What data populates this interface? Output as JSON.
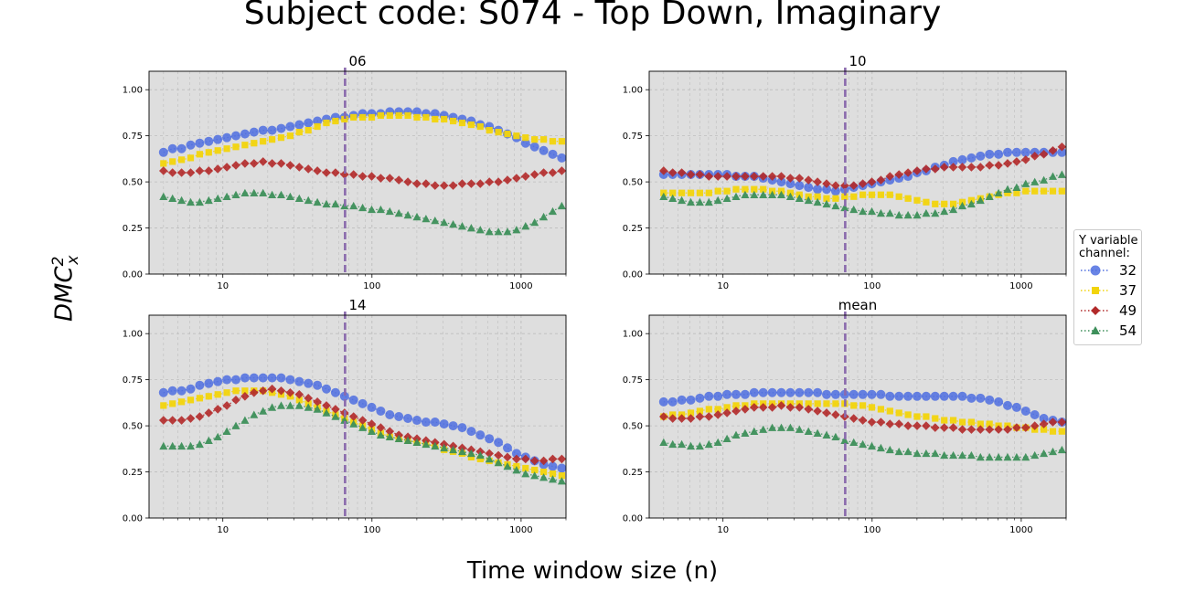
{
  "page": {
    "title": "Subject code: S074 - Top Down, Imaginary",
    "xlabel": "Time window size (n)",
    "ylabel_base": "DMC",
    "ylabel_sup": "2",
    "ylabel_sub": "x"
  },
  "legend": {
    "title_line1": "Y variable",
    "title_line2": "channel:",
    "placement": "right-center outside"
  },
  "colors": {
    "32": "#4f6fe0",
    "37": "#f2d40c",
    "49": "#b22a2a",
    "54": "#3d8f5a",
    "vline": "#8a6aac",
    "panel_bg": "#dedede"
  },
  "chart_data": [
    {
      "type": "scatter",
      "title": "06",
      "xscale": "log",
      "xlim": [
        3.2,
        2000
      ],
      "ylim": [
        0,
        1.1
      ],
      "xticks": [
        "10",
        "100",
        "1000"
      ],
      "yticks": [
        "0.00",
        "0.25",
        "0.50",
        "0.75",
        "1.00"
      ],
      "vline_x": 66,
      "grid": true,
      "x_start": 4,
      "x_ratio": 1.15,
      "series": [
        {
          "name": "32",
          "marker": "circle",
          "values": [
            0.66,
            0.68,
            0.68,
            0.7,
            0.71,
            0.72,
            0.73,
            0.74,
            0.75,
            0.76,
            0.77,
            0.78,
            0.78,
            0.79,
            0.8,
            0.81,
            0.82,
            0.83,
            0.84,
            0.85,
            0.85,
            0.86,
            0.87,
            0.87,
            0.87,
            0.88,
            0.88,
            0.88,
            0.88,
            0.87,
            0.87,
            0.86,
            0.85,
            0.84,
            0.83,
            0.81,
            0.8,
            0.78,
            0.76,
            0.74,
            0.71,
            0.69,
            0.67,
            0.65,
            0.63
          ]
        },
        {
          "name": "37",
          "marker": "square",
          "values": [
            0.6,
            0.61,
            0.62,
            0.63,
            0.65,
            0.66,
            0.67,
            0.68,
            0.69,
            0.7,
            0.71,
            0.72,
            0.73,
            0.74,
            0.75,
            0.77,
            0.78,
            0.8,
            0.82,
            0.83,
            0.84,
            0.85,
            0.85,
            0.85,
            0.86,
            0.86,
            0.86,
            0.86,
            0.85,
            0.85,
            0.84,
            0.84,
            0.83,
            0.82,
            0.81,
            0.8,
            0.78,
            0.77,
            0.76,
            0.75,
            0.74,
            0.73,
            0.73,
            0.72,
            0.72
          ]
        },
        {
          "name": "49",
          "marker": "diamond",
          "values": [
            0.56,
            0.55,
            0.55,
            0.55,
            0.56,
            0.56,
            0.57,
            0.58,
            0.59,
            0.6,
            0.6,
            0.61,
            0.6,
            0.6,
            0.59,
            0.58,
            0.57,
            0.56,
            0.55,
            0.55,
            0.54,
            0.54,
            0.53,
            0.53,
            0.52,
            0.52,
            0.51,
            0.5,
            0.49,
            0.49,
            0.48,
            0.48,
            0.48,
            0.49,
            0.49,
            0.49,
            0.5,
            0.5,
            0.51,
            0.52,
            0.53,
            0.54,
            0.55,
            0.55,
            0.56
          ]
        },
        {
          "name": "54",
          "marker": "triangle",
          "values": [
            0.42,
            0.41,
            0.4,
            0.39,
            0.39,
            0.4,
            0.41,
            0.42,
            0.43,
            0.44,
            0.44,
            0.44,
            0.43,
            0.43,
            0.42,
            0.41,
            0.4,
            0.39,
            0.38,
            0.38,
            0.37,
            0.37,
            0.36,
            0.35,
            0.35,
            0.34,
            0.33,
            0.32,
            0.31,
            0.3,
            0.29,
            0.28,
            0.27,
            0.26,
            0.25,
            0.24,
            0.23,
            0.23,
            0.23,
            0.24,
            0.26,
            0.28,
            0.31,
            0.34,
            0.37
          ]
        }
      ]
    },
    {
      "type": "scatter",
      "title": "10",
      "xscale": "log",
      "xlim": [
        3.2,
        2000
      ],
      "ylim": [
        0,
        1.1
      ],
      "xticks": [
        "10",
        "100",
        "1000"
      ],
      "yticks": [
        "0.00",
        "0.25",
        "0.50",
        "0.75",
        "1.00"
      ],
      "vline_x": 66,
      "grid": true,
      "x_start": 4,
      "x_ratio": 1.15,
      "series": [
        {
          "name": "32",
          "marker": "circle",
          "values": [
            0.54,
            0.54,
            0.54,
            0.54,
            0.54,
            0.54,
            0.54,
            0.54,
            0.53,
            0.53,
            0.53,
            0.52,
            0.51,
            0.5,
            0.49,
            0.48,
            0.47,
            0.46,
            0.46,
            0.45,
            0.46,
            0.47,
            0.48,
            0.49,
            0.5,
            0.51,
            0.52,
            0.53,
            0.55,
            0.56,
            0.58,
            0.59,
            0.61,
            0.62,
            0.63,
            0.64,
            0.65,
            0.65,
            0.66,
            0.66,
            0.66,
            0.66,
            0.66,
            0.66,
            0.66
          ]
        },
        {
          "name": "37",
          "marker": "square",
          "values": [
            0.44,
            0.44,
            0.44,
            0.44,
            0.44,
            0.44,
            0.45,
            0.45,
            0.46,
            0.46,
            0.46,
            0.46,
            0.45,
            0.45,
            0.44,
            0.43,
            0.42,
            0.42,
            0.41,
            0.41,
            0.42,
            0.42,
            0.43,
            0.43,
            0.43,
            0.43,
            0.42,
            0.41,
            0.4,
            0.39,
            0.38,
            0.38,
            0.38,
            0.39,
            0.4,
            0.41,
            0.42,
            0.43,
            0.44,
            0.44,
            0.45,
            0.45,
            0.45,
            0.45,
            0.45
          ]
        },
        {
          "name": "49",
          "marker": "diamond",
          "values": [
            0.56,
            0.55,
            0.55,
            0.54,
            0.54,
            0.53,
            0.53,
            0.53,
            0.53,
            0.53,
            0.53,
            0.53,
            0.53,
            0.53,
            0.52,
            0.52,
            0.51,
            0.5,
            0.49,
            0.48,
            0.48,
            0.48,
            0.49,
            0.5,
            0.51,
            0.53,
            0.54,
            0.55,
            0.56,
            0.57,
            0.57,
            0.58,
            0.58,
            0.58,
            0.58,
            0.58,
            0.59,
            0.59,
            0.6,
            0.61,
            0.62,
            0.64,
            0.65,
            0.67,
            0.69
          ]
        },
        {
          "name": "54",
          "marker": "triangle",
          "values": [
            0.42,
            0.41,
            0.4,
            0.39,
            0.39,
            0.39,
            0.4,
            0.41,
            0.42,
            0.43,
            0.43,
            0.43,
            0.43,
            0.43,
            0.42,
            0.41,
            0.4,
            0.39,
            0.38,
            0.37,
            0.36,
            0.35,
            0.34,
            0.34,
            0.33,
            0.33,
            0.32,
            0.32,
            0.32,
            0.33,
            0.33,
            0.34,
            0.35,
            0.37,
            0.38,
            0.4,
            0.42,
            0.44,
            0.46,
            0.47,
            0.49,
            0.5,
            0.51,
            0.53,
            0.54
          ]
        }
      ]
    },
    {
      "type": "scatter",
      "title": "14",
      "xscale": "log",
      "xlim": [
        3.2,
        2000
      ],
      "ylim": [
        0,
        1.1
      ],
      "xticks": [
        "10",
        "100",
        "1000"
      ],
      "yticks": [
        "0.00",
        "0.25",
        "0.50",
        "0.75",
        "1.00"
      ],
      "vline_x": 66,
      "grid": true,
      "x_start": 4,
      "x_ratio": 1.15,
      "series": [
        {
          "name": "32",
          "marker": "circle",
          "values": [
            0.68,
            0.69,
            0.69,
            0.7,
            0.72,
            0.73,
            0.74,
            0.75,
            0.75,
            0.76,
            0.76,
            0.76,
            0.76,
            0.76,
            0.75,
            0.74,
            0.73,
            0.72,
            0.7,
            0.68,
            0.66,
            0.64,
            0.62,
            0.6,
            0.58,
            0.56,
            0.55,
            0.54,
            0.53,
            0.52,
            0.52,
            0.51,
            0.5,
            0.49,
            0.47,
            0.45,
            0.43,
            0.41,
            0.38,
            0.35,
            0.33,
            0.31,
            0.29,
            0.28,
            0.27
          ]
        },
        {
          "name": "37",
          "marker": "square",
          "values": [
            0.61,
            0.62,
            0.63,
            0.64,
            0.65,
            0.66,
            0.67,
            0.68,
            0.69,
            0.69,
            0.69,
            0.69,
            0.68,
            0.67,
            0.66,
            0.64,
            0.62,
            0.6,
            0.58,
            0.56,
            0.54,
            0.52,
            0.5,
            0.48,
            0.46,
            0.44,
            0.43,
            0.42,
            0.41,
            0.4,
            0.39,
            0.37,
            0.36,
            0.35,
            0.33,
            0.32,
            0.31,
            0.3,
            0.29,
            0.28,
            0.27,
            0.26,
            0.25,
            0.24,
            0.23
          ]
        },
        {
          "name": "49",
          "marker": "diamond",
          "values": [
            0.53,
            0.53,
            0.53,
            0.54,
            0.55,
            0.57,
            0.59,
            0.61,
            0.64,
            0.66,
            0.68,
            0.69,
            0.7,
            0.69,
            0.68,
            0.67,
            0.65,
            0.63,
            0.61,
            0.59,
            0.57,
            0.55,
            0.53,
            0.51,
            0.49,
            0.47,
            0.45,
            0.44,
            0.43,
            0.42,
            0.41,
            0.4,
            0.39,
            0.38,
            0.37,
            0.36,
            0.35,
            0.34,
            0.33,
            0.32,
            0.32,
            0.31,
            0.31,
            0.32,
            0.32
          ]
        },
        {
          "name": "54",
          "marker": "triangle",
          "values": [
            0.39,
            0.39,
            0.39,
            0.39,
            0.4,
            0.42,
            0.44,
            0.47,
            0.5,
            0.53,
            0.56,
            0.58,
            0.6,
            0.61,
            0.61,
            0.61,
            0.6,
            0.59,
            0.57,
            0.55,
            0.53,
            0.51,
            0.49,
            0.47,
            0.45,
            0.44,
            0.43,
            0.42,
            0.41,
            0.4,
            0.39,
            0.38,
            0.37,
            0.36,
            0.35,
            0.34,
            0.32,
            0.3,
            0.28,
            0.26,
            0.24,
            0.23,
            0.22,
            0.21,
            0.2
          ]
        }
      ]
    },
    {
      "type": "scatter",
      "title": "mean",
      "xscale": "log",
      "xlim": [
        3.2,
        2000
      ],
      "ylim": [
        0,
        1.1
      ],
      "xticks": [
        "10",
        "100",
        "1000"
      ],
      "yticks": [
        "0.00",
        "0.25",
        "0.50",
        "0.75",
        "1.00"
      ],
      "vline_x": 66,
      "grid": true,
      "x_start": 4,
      "x_ratio": 1.15,
      "series": [
        {
          "name": "32",
          "marker": "circle",
          "values": [
            0.63,
            0.63,
            0.64,
            0.64,
            0.65,
            0.66,
            0.66,
            0.67,
            0.67,
            0.67,
            0.68,
            0.68,
            0.68,
            0.68,
            0.68,
            0.68,
            0.68,
            0.68,
            0.67,
            0.67,
            0.67,
            0.67,
            0.67,
            0.67,
            0.67,
            0.66,
            0.66,
            0.66,
            0.66,
            0.66,
            0.66,
            0.66,
            0.66,
            0.66,
            0.65,
            0.65,
            0.64,
            0.63,
            0.61,
            0.6,
            0.58,
            0.56,
            0.54,
            0.53,
            0.52
          ]
        },
        {
          "name": "37",
          "marker": "square",
          "values": [
            0.55,
            0.56,
            0.56,
            0.57,
            0.58,
            0.59,
            0.59,
            0.6,
            0.61,
            0.61,
            0.62,
            0.62,
            0.62,
            0.62,
            0.62,
            0.62,
            0.62,
            0.62,
            0.62,
            0.62,
            0.62,
            0.61,
            0.61,
            0.6,
            0.59,
            0.58,
            0.57,
            0.56,
            0.55,
            0.55,
            0.54,
            0.53,
            0.53,
            0.52,
            0.52,
            0.51,
            0.51,
            0.5,
            0.5,
            0.49,
            0.49,
            0.48,
            0.48,
            0.47,
            0.47
          ]
        },
        {
          "name": "49",
          "marker": "diamond",
          "values": [
            0.55,
            0.54,
            0.54,
            0.54,
            0.55,
            0.55,
            0.56,
            0.57,
            0.58,
            0.59,
            0.6,
            0.6,
            0.6,
            0.61,
            0.6,
            0.6,
            0.59,
            0.58,
            0.57,
            0.56,
            0.55,
            0.54,
            0.53,
            0.52,
            0.52,
            0.51,
            0.51,
            0.5,
            0.5,
            0.5,
            0.49,
            0.49,
            0.49,
            0.48,
            0.48,
            0.48,
            0.48,
            0.48,
            0.48,
            0.49,
            0.49,
            0.5,
            0.51,
            0.52,
            0.52
          ]
        },
        {
          "name": "54",
          "marker": "triangle",
          "values": [
            0.41,
            0.4,
            0.4,
            0.39,
            0.39,
            0.4,
            0.41,
            0.43,
            0.45,
            0.46,
            0.47,
            0.48,
            0.49,
            0.49,
            0.49,
            0.48,
            0.47,
            0.46,
            0.45,
            0.44,
            0.42,
            0.41,
            0.4,
            0.39,
            0.38,
            0.37,
            0.36,
            0.36,
            0.35,
            0.35,
            0.35,
            0.34,
            0.34,
            0.34,
            0.34,
            0.33,
            0.33,
            0.33,
            0.33,
            0.33,
            0.33,
            0.34,
            0.35,
            0.36,
            0.37
          ]
        }
      ]
    }
  ]
}
